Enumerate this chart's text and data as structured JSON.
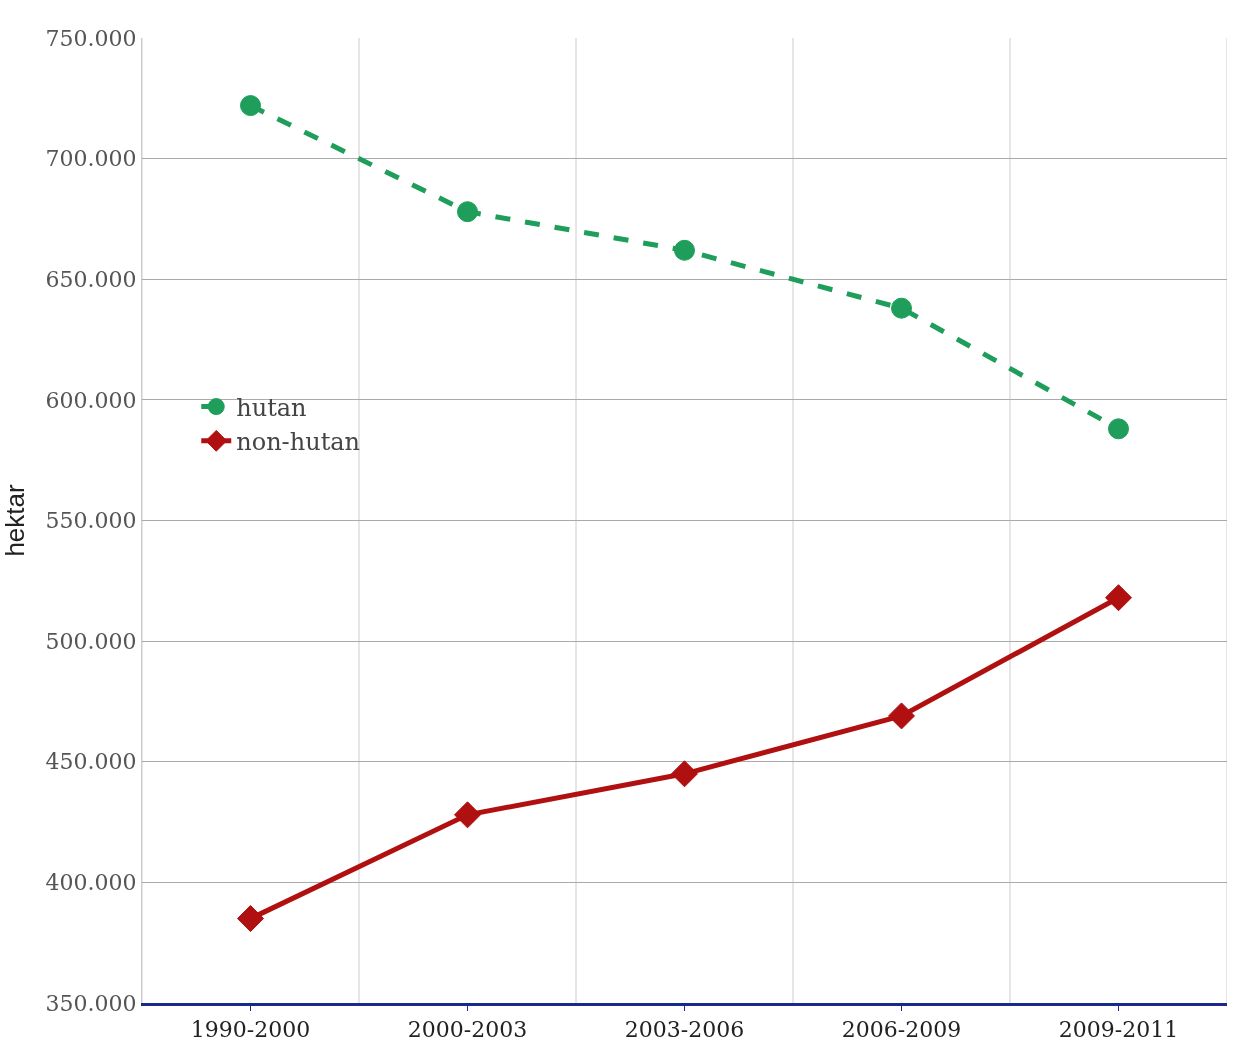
{
  "chart_data": {
    "type": "line",
    "ylabel": "hektar",
    "categories": [
      "1990-2000",
      "2000-2003",
      "2003-2006",
      "2006-2009",
      "2009-2011"
    ],
    "series": [
      {
        "name": "hutan",
        "color": "#1e9e5a",
        "values": [
          722000,
          678000,
          662000,
          638000,
          588000
        ],
        "line_style": "dashed",
        "marker": "circle"
      },
      {
        "name": "non-hutan",
        "color": "#b01010",
        "values": [
          385000,
          428000,
          445000,
          469000,
          518000
        ],
        "line_style": "solid",
        "marker": "diamond"
      }
    ],
    "ylim": [
      350000,
      750000
    ],
    "yticks": [
      {
        "value": 350000,
        "label": "350.000"
      },
      {
        "value": 400000,
        "label": "400.000"
      },
      {
        "value": 450000,
        "label": "450.000"
      },
      {
        "value": 500000,
        "label": "500.000"
      },
      {
        "value": 550000,
        "label": "550.000"
      },
      {
        "value": 600000,
        "label": "600.000"
      },
      {
        "value": 650000,
        "label": "650.000"
      },
      {
        "value": 700000,
        "label": "700.000"
      },
      {
        "value": 750000,
        "label": "750.000"
      }
    ],
    "grid": true,
    "legend": "left"
  }
}
